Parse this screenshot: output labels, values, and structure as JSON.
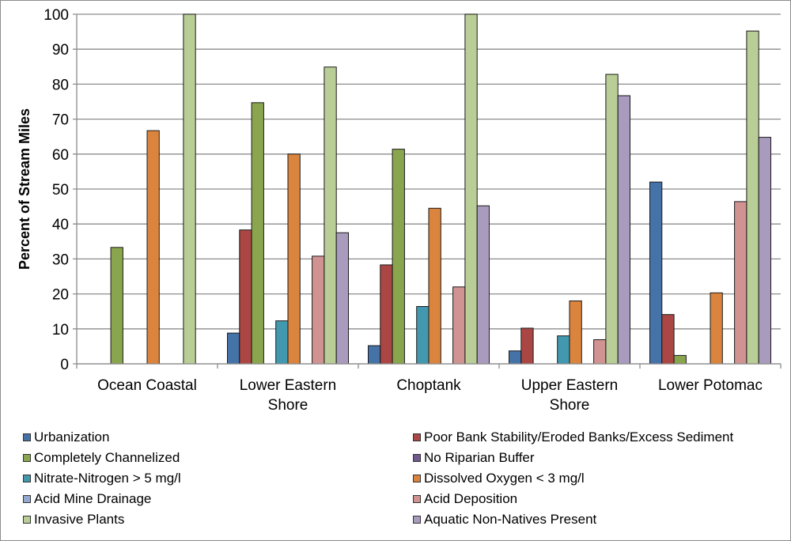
{
  "chart_data": {
    "type": "bar",
    "title": "",
    "xlabel": "",
    "ylabel": "Percent of Stream Miles",
    "ylim": [
      0,
      100
    ],
    "yticks": [
      0,
      10,
      20,
      30,
      40,
      50,
      60,
      70,
      80,
      90,
      100
    ],
    "grid": true,
    "legend_position": "bottom",
    "categories": [
      [
        "Ocean Coastal"
      ],
      [
        "Lower Eastern",
        "Shore"
      ],
      [
        "Choptank"
      ],
      [
        "Upper Eastern",
        "Shore"
      ],
      [
        "Lower Potomac"
      ]
    ],
    "category_names": [
      "Ocean Coastal",
      "Lower Eastern Shore",
      "Choptank",
      "Upper Eastern Shore",
      "Lower Potomac"
    ],
    "series": [
      {
        "name": "Urbanization",
        "color": "#4572a7",
        "values": [
          0,
          8.8,
          5.2,
          3.7,
          52.0
        ]
      },
      {
        "name": "Poor Bank Stability/Eroded Banks/Excess Sediment",
        "color": "#aa4643",
        "values": [
          0,
          38.3,
          28.3,
          10.2,
          14.1
        ]
      },
      {
        "name": "Completely Channelized",
        "color": "#89a54e",
        "values": [
          33.3,
          74.7,
          61.4,
          0,
          2.4
        ]
      },
      {
        "name": "No Riparian Buffer",
        "color": "#71588f",
        "values": [
          0,
          0,
          0,
          0,
          0
        ]
      },
      {
        "name": "Nitrate-Nitrogen > 5 mg/l",
        "color": "#4198af",
        "values": [
          0,
          12.3,
          16.4,
          8.0,
          0
        ]
      },
      {
        "name": "Dissolved Oxygen < 3 mg/l",
        "color": "#db843d",
        "values": [
          66.7,
          60.0,
          44.5,
          18.0,
          20.3
        ]
      },
      {
        "name": "Acid Mine Drainage",
        "color": "#93a9cf",
        "values": [
          0,
          0,
          0,
          0,
          0
        ]
      },
      {
        "name": "Acid Deposition",
        "color": "#d19392",
        "values": [
          0,
          30.8,
          22.0,
          6.9,
          46.4
        ]
      },
      {
        "name": "Invasive Plants",
        "color": "#b9cd96",
        "values": [
          100,
          84.9,
          100,
          82.8,
          95.2
        ]
      },
      {
        "name": "Aquatic Non-Natives Present",
        "color": "#a99bbd",
        "values": [
          0,
          37.5,
          45.2,
          76.7,
          64.8
        ]
      }
    ]
  }
}
